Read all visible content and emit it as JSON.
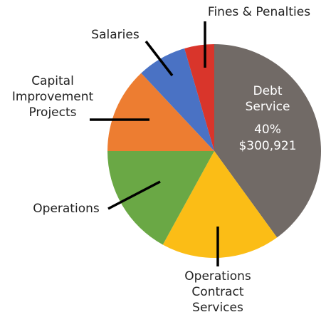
{
  "chart_data": {
    "type": "pie",
    "categories": [
      "Debt Service",
      "Operations Contract Services",
      "Operations",
      "Capital Improvement Projects",
      "Salaries",
      "Fines & Penalties"
    ],
    "values": [
      40,
      18,
      17,
      13,
      7.5,
      4.5
    ],
    "value_labels": [
      "40%",
      null,
      null,
      null,
      null,
      null
    ],
    "annotations": [
      "$300,921"
    ],
    "colors": [
      "#716a66",
      "#fbbd16",
      "#6aa845",
      "#ed7d31",
      "#4a72c4",
      "#d9352b"
    ]
  }
}
